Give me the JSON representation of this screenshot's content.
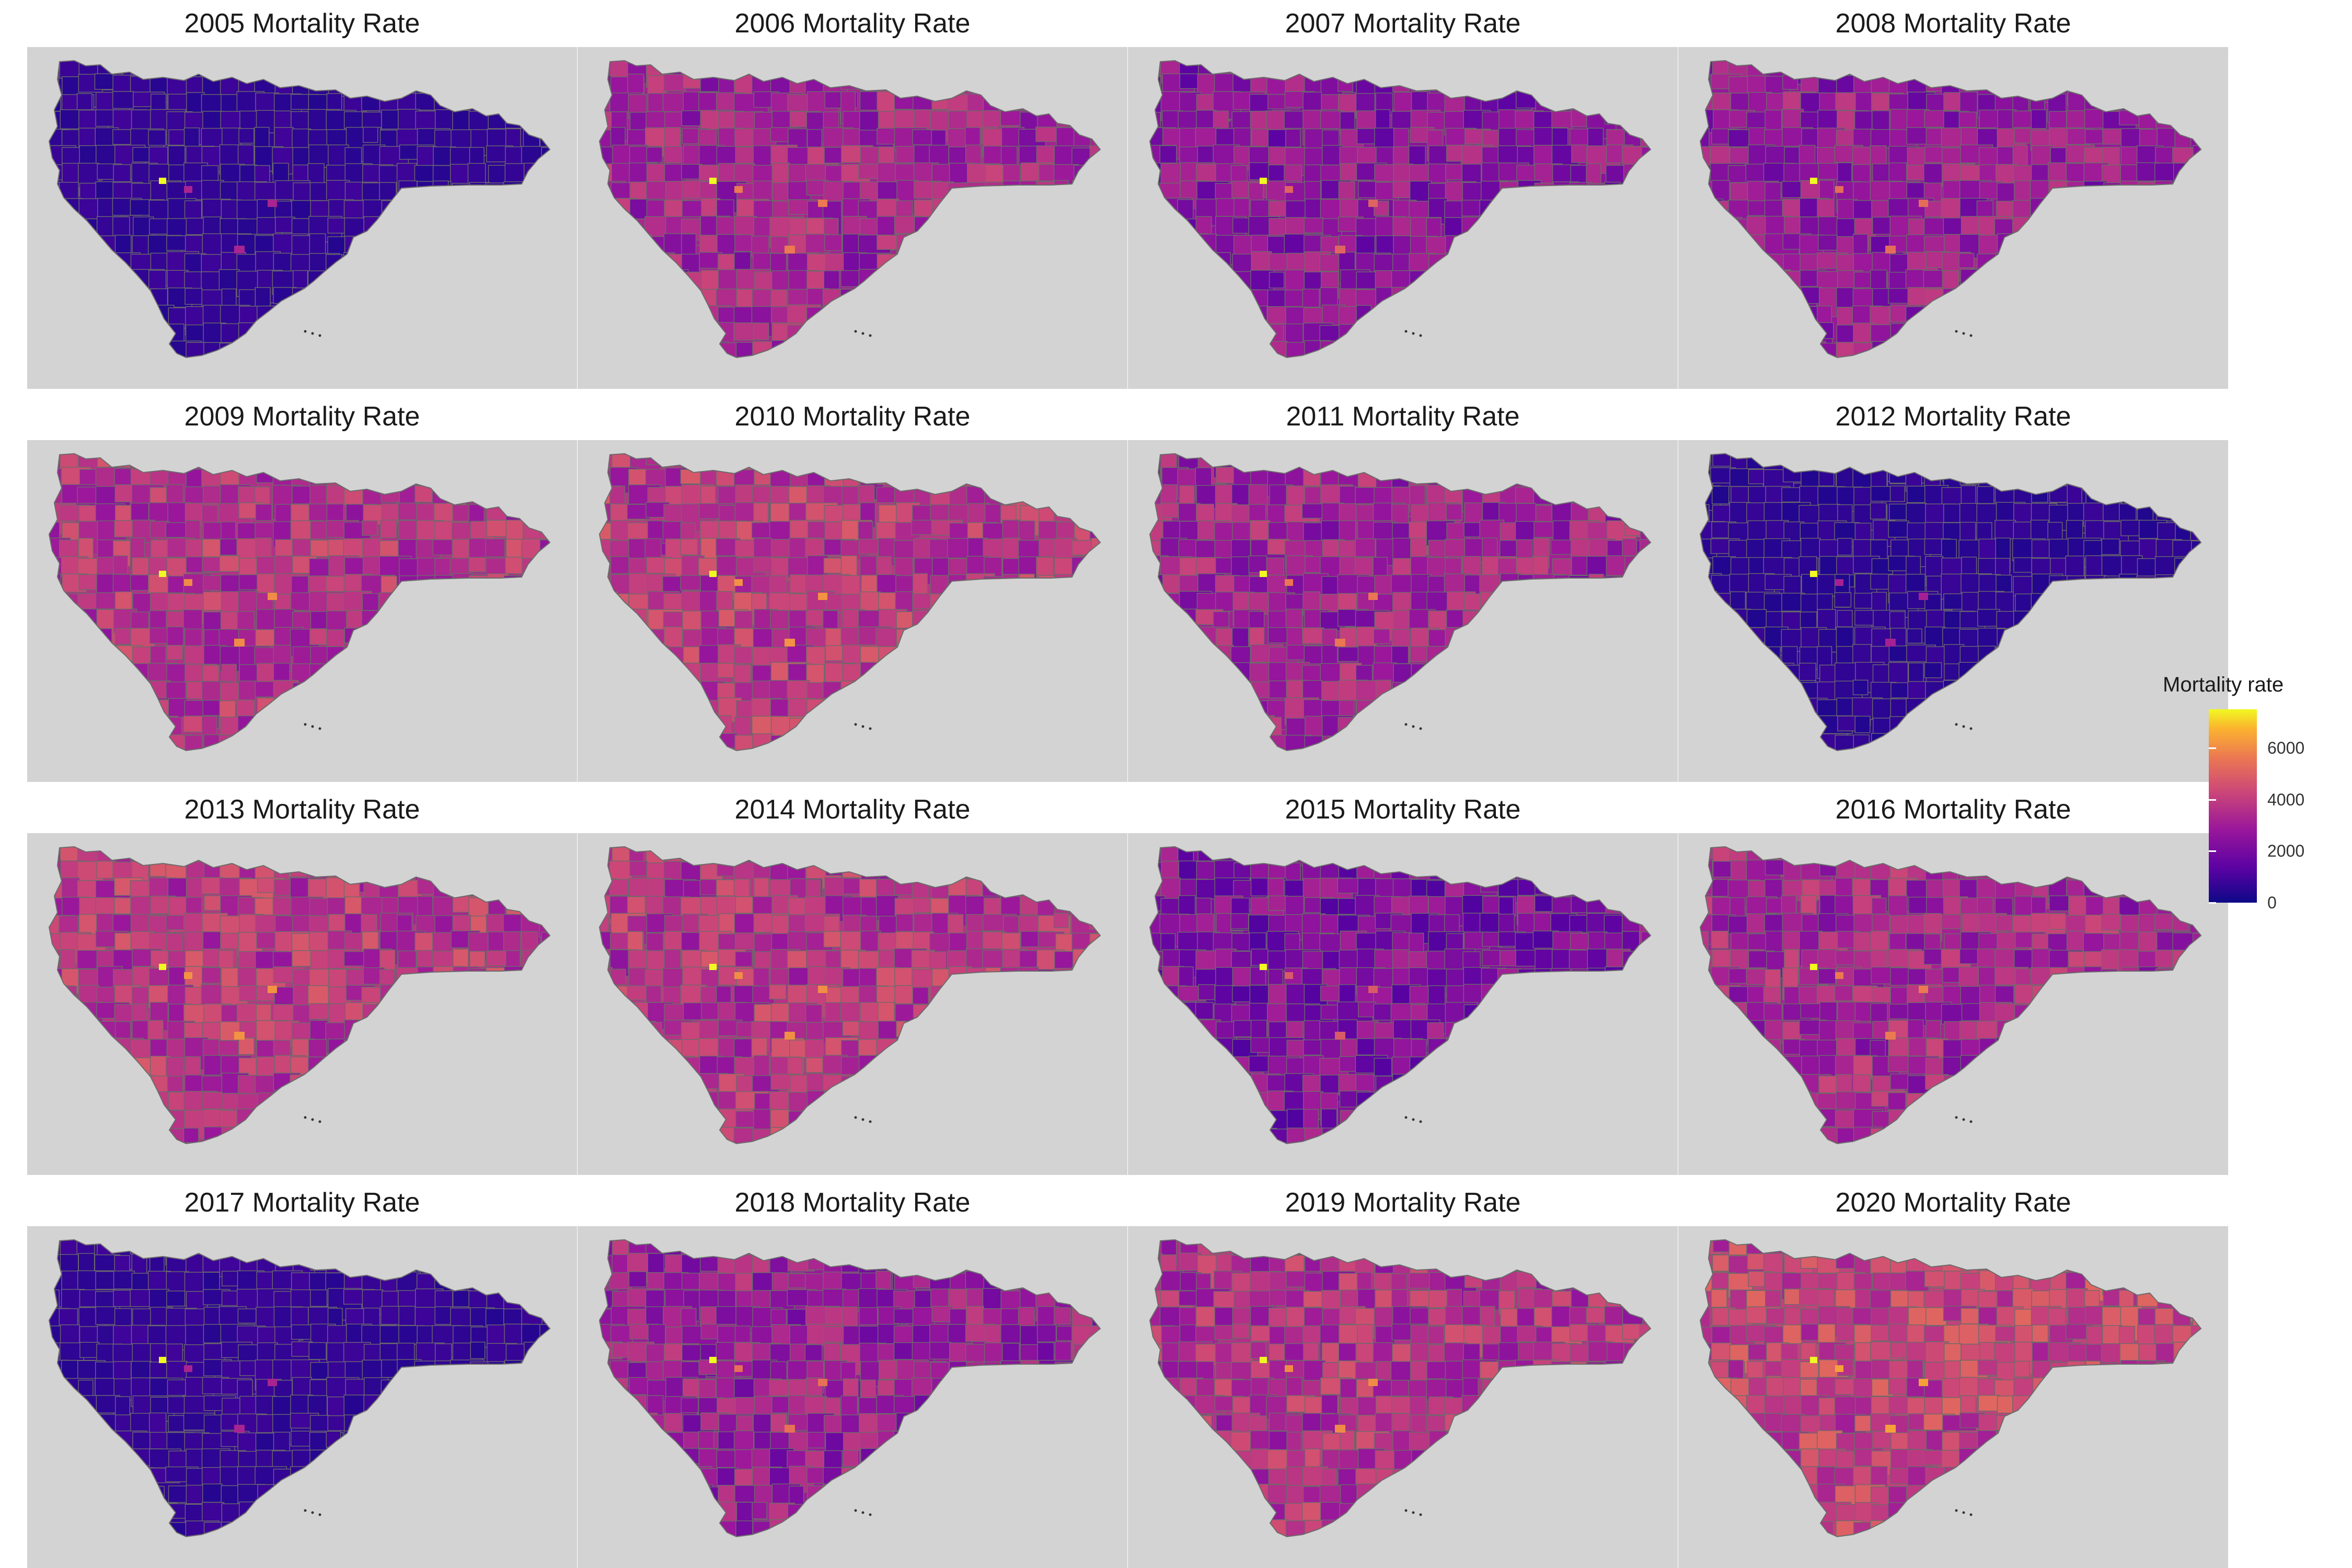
{
  "figure": {
    "panels": [
      {
        "title": "2005 Mortality Rate",
        "year": 2005,
        "level": 0.08
      },
      {
        "title": "2006 Mortality Rate",
        "year": 2006,
        "level": 0.37
      },
      {
        "title": "2007 Mortality Rate",
        "year": 2007,
        "level": 0.3
      },
      {
        "title": "2008 Mortality Rate",
        "year": 2008,
        "level": 0.33
      },
      {
        "title": "2009 Mortality Rate",
        "year": 2009,
        "level": 0.42
      },
      {
        "title": "2010 Mortality Rate",
        "year": 2010,
        "level": 0.44
      },
      {
        "title": "2011 Mortality Rate",
        "year": 2011,
        "level": 0.36
      },
      {
        "title": "2012 Mortality Rate",
        "year": 2012,
        "level": 0.07
      },
      {
        "title": "2013 Mortality Rate",
        "year": 2013,
        "level": 0.44
      },
      {
        "title": "2014 Mortality Rate",
        "year": 2014,
        "level": 0.43
      },
      {
        "title": "2015 Mortality Rate",
        "year": 2015,
        "level": 0.27
      },
      {
        "title": "2016 Mortality Rate",
        "year": 2016,
        "level": 0.37
      },
      {
        "title": "2017 Mortality Rate",
        "year": 2017,
        "level": 0.08
      },
      {
        "title": "2018 Mortality Rate",
        "year": 2018,
        "level": 0.34
      },
      {
        "title": "2019 Mortality Rate",
        "year": 2019,
        "level": 0.42
      },
      {
        "title": "2020 Mortality Rate",
        "year": 2020,
        "level": 0.48
      }
    ],
    "map_background": "#d3d3d3",
    "border_color": "#6b6b6b",
    "color_scale": "plasma"
  },
  "legend": {
    "title": "Mortality rate",
    "range": [
      0,
      7500
    ],
    "ticks": [
      {
        "label": "0",
        "value": 0
      },
      {
        "label": "2000",
        "value": 2000
      },
      {
        "label": "4000",
        "value": 4000
      },
      {
        "label": "6000",
        "value": 6000
      }
    ],
    "colors": [
      "#0d0887",
      "#5b02a3",
      "#9a179b",
      "#cb4678",
      "#eb7852",
      "#fbb32f",
      "#f0f921"
    ]
  }
}
